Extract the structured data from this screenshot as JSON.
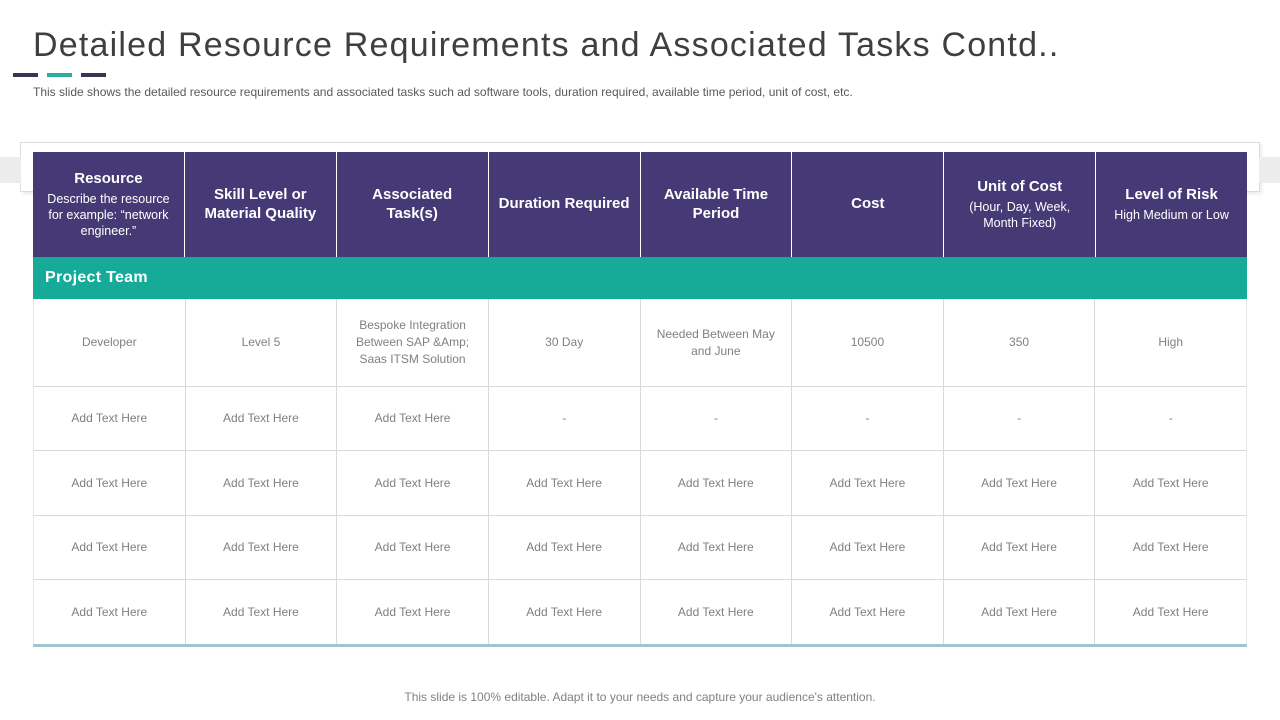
{
  "slide": {
    "title": "Detailed Resource Requirements and Associated Tasks Contd..",
    "subtitle": "This slide shows the detailed resource requirements and associated tasks such ad software tools, duration required, available time period, unit of cost, etc.",
    "footer": "This slide is 100% editable. Adapt it to your needs and capture your audience's attention."
  },
  "colors": {
    "header_purple": "#463a76",
    "band_teal": "#16ab99",
    "dash_dark": "#3b3552",
    "dash_teal": "#2ead9c",
    "table_bottom_border": "#9ec7cd",
    "cell_text": "#808080",
    "title_text": "#3f3f3f"
  },
  "table": {
    "section_label": "Project Team",
    "headers": [
      {
        "title": "Resource",
        "subtitle": "Describe the resource for example: “network engineer.”"
      },
      {
        "title": "Skill Level or Material Quality"
      },
      {
        "title": "Associated Task(s)"
      },
      {
        "title": "Duration Required"
      },
      {
        "title": "Available Time Period"
      },
      {
        "title": "Cost"
      },
      {
        "title": "Unit of Cost",
        "subtitle": "(Hour, Day, Week, Month Fixed)"
      },
      {
        "title": "Level of Risk",
        "subtitle": "High Medium or Low"
      }
    ],
    "rows": [
      [
        "Developer",
        "Level 5",
        "Bespoke Integration Between SAP &Amp; Saas ITSM Solution",
        "30 Day",
        "Needed Between May and June",
        "10500",
        "350",
        "High"
      ],
      [
        "Add Text Here",
        "Add Text Here",
        "Add Text Here",
        "-",
        "-",
        "-",
        "-",
        "-"
      ],
      [
        "Add Text Here",
        "Add Text Here",
        "Add Text Here",
        "Add Text Here",
        "Add Text Here",
        "Add Text Here",
        "Add Text Here",
        "Add Text Here"
      ],
      [
        "Add Text Here",
        "Add Text Here",
        "Add Text Here",
        "Add Text Here",
        "Add Text Here",
        "Add Text Here",
        "Add Text Here",
        "Add Text Here"
      ],
      [
        "Add Text Here",
        "Add Text Here",
        "Add Text Here",
        "Add Text Here",
        "Add Text Here",
        "Add Text Here",
        "Add Text Here",
        "Add Text Here"
      ]
    ]
  }
}
